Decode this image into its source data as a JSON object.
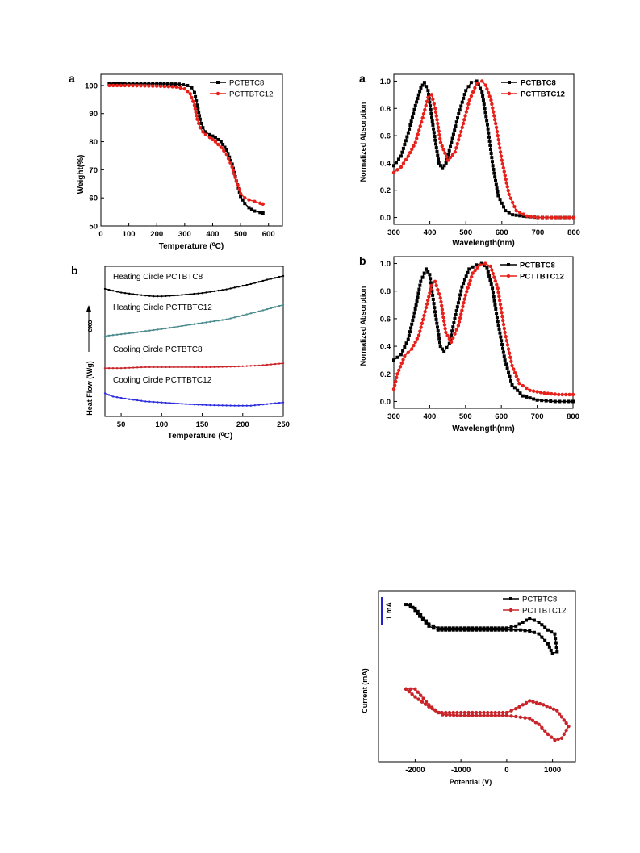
{
  "colors": {
    "black": "#000000",
    "red": "#e8201a",
    "teal": "#4a8a8c",
    "crimson": "#c8242a",
    "blue": "#2d2de0",
    "scale_bar": "#2222cc"
  },
  "chart_data": [
    {
      "id": "tga",
      "type": "line",
      "panel_label": "a",
      "xlabel": "Temperature (⁰C)",
      "ylabel": "Weight(%)",
      "xlim": [
        0,
        650
      ],
      "ylim": [
        50,
        104
      ],
      "xticks": [
        0,
        100,
        200,
        300,
        400,
        500,
        600
      ],
      "yticks": [
        50,
        60,
        70,
        80,
        90,
        100
      ],
      "legend": "top-right",
      "series": [
        {
          "name": "PCTBTC8",
          "color": "#000000",
          "marker": "square",
          "x": [
            30,
            100,
            200,
            280,
            310,
            325,
            335,
            345,
            355,
            365,
            375,
            390,
            410,
            430,
            450,
            470,
            485,
            500,
            515,
            530,
            550,
            570,
            580
          ],
          "y": [
            100.6,
            100.6,
            100.6,
            100.5,
            100.0,
            99.2,
            97.5,
            93.0,
            88.0,
            85.0,
            83.5,
            82.5,
            81.5,
            80.0,
            77.0,
            72.0,
            66.0,
            60.5,
            58.0,
            56.5,
            55.3,
            54.8,
            54.6
          ]
        },
        {
          "name": "PCTTBTC12",
          "color": "#e8201a",
          "marker": "circle",
          "x": [
            30,
            100,
            200,
            270,
            300,
            320,
            335,
            345,
            355,
            365,
            375,
            390,
            410,
            430,
            450,
            470,
            485,
            500,
            515,
            530,
            550,
            570,
            580
          ],
          "y": [
            100.0,
            100.0,
            99.8,
            99.5,
            98.8,
            97.0,
            93.0,
            88.0,
            85.0,
            83.5,
            82.5,
            81.5,
            80.0,
            78.0,
            75.5,
            71.0,
            66.0,
            61.5,
            60.0,
            59.3,
            58.7,
            58.1,
            57.8
          ]
        }
      ]
    },
    {
      "id": "dsc",
      "type": "line",
      "panel_label": "b",
      "xlabel": "Temperature (⁰C)",
      "ylabel": "Heat Flow (W/g)",
      "arrow_label": "exo",
      "xlim": [
        30,
        250
      ],
      "xticks": [
        50,
        100,
        150,
        200,
        250
      ],
      "series": [
        {
          "name": "Heating Circle PCTBTC8",
          "color": "#000000",
          "offset": 1.7,
          "x": [
            30,
            50,
            70,
            90,
            100,
            120,
            150,
            180,
            210,
            230,
            250
          ],
          "y": [
            0.18,
            0.11,
            0.07,
            0.04,
            0.04,
            0.06,
            0.1,
            0.17,
            0.27,
            0.35,
            0.42
          ]
        },
        {
          "name": "Heating Circle PCTTBTC12",
          "color": "#4a8a8c",
          "offset": 1.0,
          "x": [
            30,
            60,
            100,
            140,
            180,
            220,
            250
          ],
          "y": [
            0.0,
            0.05,
            0.13,
            0.22,
            0.31,
            0.46,
            0.58
          ]
        },
        {
          "name": "Cooling Circle PCTBTC8",
          "color": "#c8242a",
          "offset": 0.4,
          "x": [
            30,
            50,
            80,
            100,
            130,
            160,
            190,
            220,
            250
          ],
          "y": [
            0.0,
            0.0,
            0.02,
            0.02,
            0.02,
            0.02,
            0.03,
            0.05,
            0.09
          ]
        },
        {
          "name": "Cooling Circle PCTTBTC12",
          "color": "#2d2de0",
          "offset": -0.18,
          "x": [
            30,
            40,
            60,
            80,
            100,
            130,
            160,
            190,
            210,
            230,
            250
          ],
          "y": [
            0.11,
            0.05,
            0.0,
            -0.04,
            -0.06,
            -0.09,
            -0.11,
            -0.12,
            -0.12,
            -0.09,
            -0.06
          ]
        }
      ]
    },
    {
      "id": "abs_a",
      "type": "line",
      "panel_label": "a",
      "xlabel": "Wavelength(nm)",
      "ylabel": "Normalized Absorption",
      "xlim": [
        300,
        800
      ],
      "ylim": [
        -0.05,
        1.05
      ],
      "xticks": [
        300,
        400,
        500,
        600,
        700,
        800
      ],
      "yticks": [
        0.0,
        0.2,
        0.4,
        0.6,
        0.8,
        1.0
      ],
      "legend": "top-right",
      "series": [
        {
          "name": "PCTBTC8",
          "color": "#000000",
          "marker": "square",
          "x": [
            300,
            320,
            340,
            360,
            375,
            385,
            395,
            410,
            425,
            435,
            445,
            460,
            480,
            500,
            515,
            530,
            545,
            560,
            575,
            590,
            610,
            630,
            660,
            700,
            750,
            800
          ],
          "y": [
            0.38,
            0.45,
            0.62,
            0.82,
            0.95,
            0.99,
            0.93,
            0.65,
            0.4,
            0.36,
            0.4,
            0.55,
            0.76,
            0.93,
            0.99,
            1.0,
            0.92,
            0.68,
            0.38,
            0.16,
            0.05,
            0.02,
            0.01,
            0.0,
            0.0,
            0.0
          ]
        },
        {
          "name": "PCTTBTC12",
          "color": "#e8201a",
          "marker": "circle",
          "x": [
            300,
            320,
            340,
            360,
            380,
            395,
            405,
            415,
            430,
            450,
            470,
            490,
            510,
            530,
            545,
            555,
            570,
            585,
            600,
            620,
            640,
            670,
            700,
            750,
            800
          ],
          "y": [
            0.33,
            0.37,
            0.45,
            0.55,
            0.73,
            0.88,
            0.9,
            0.8,
            0.55,
            0.42,
            0.48,
            0.66,
            0.86,
            0.98,
            1.0,
            0.97,
            0.86,
            0.66,
            0.42,
            0.17,
            0.05,
            0.01,
            0.0,
            0.0,
            0.0
          ]
        }
      ]
    },
    {
      "id": "abs_b",
      "type": "line",
      "panel_label": "b",
      "xlabel": "Wavelength(nm)",
      "ylabel": "Normalized Absorption",
      "xlim": [
        300,
        800
      ],
      "ylim": [
        -0.05,
        1.05
      ],
      "xticks": [
        300,
        400,
        500,
        600,
        700,
        800
      ],
      "yticks": [
        0.0,
        0.2,
        0.4,
        0.6,
        0.8,
        1.0
      ],
      "legend": "top-right",
      "series": [
        {
          "name": "PCTBTC8",
          "color": "#000000",
          "marker": "square",
          "x": [
            300,
            320,
            340,
            360,
            375,
            390,
            400,
            415,
            430,
            440,
            455,
            470,
            490,
            510,
            530,
            545,
            560,
            575,
            590,
            610,
            630,
            660,
            700,
            750,
            800
          ],
          "y": [
            0.3,
            0.34,
            0.45,
            0.67,
            0.87,
            0.96,
            0.92,
            0.65,
            0.4,
            0.36,
            0.42,
            0.6,
            0.83,
            0.96,
            0.99,
            1.0,
            0.97,
            0.82,
            0.58,
            0.3,
            0.12,
            0.04,
            0.01,
            0.0,
            0.0
          ]
        },
        {
          "name": "PCTTBTC12",
          "color": "#e8201a",
          "marker": "circle",
          "x": [
            300,
            310,
            330,
            350,
            370,
            390,
            405,
            415,
            430,
            445,
            460,
            480,
            500,
            520,
            540,
            555,
            570,
            590,
            610,
            630,
            650,
            680,
            720,
            760,
            800
          ],
          "y": [
            0.09,
            0.2,
            0.33,
            0.38,
            0.48,
            0.68,
            0.84,
            0.87,
            0.75,
            0.5,
            0.43,
            0.55,
            0.77,
            0.93,
            0.99,
            1.0,
            0.98,
            0.82,
            0.5,
            0.26,
            0.13,
            0.08,
            0.06,
            0.05,
            0.05
          ]
        }
      ]
    },
    {
      "id": "cv",
      "type": "line",
      "xlabel": "Potential (V)",
      "ylabel": "Current (mA)",
      "scale_bar_label": "1 mA",
      "xlim": [
        -2800,
        1500
      ],
      "xticks": [
        -2000,
        -1000,
        0,
        1000
      ],
      "legend": "top-right",
      "series": [
        {
          "name": "PCTBTC8",
          "color": "#000000",
          "marker": "square",
          "x": [
            -2200,
            -2000,
            -1700,
            -1500,
            -1000,
            -500,
            0,
            200,
            500,
            700,
            900,
            1050,
            1100,
            1000,
            900,
            700,
            500,
            300,
            0,
            -500,
            -1000,
            -1500,
            -1700,
            -1900,
            -2100
          ],
          "y": [
            5.8,
            5.6,
            4.8,
            4.6,
            4.6,
            4.6,
            4.6,
            4.7,
            5.1,
            4.9,
            4.5,
            4.3,
            3.4,
            3.3,
            3.8,
            4.3,
            4.45,
            4.5,
            4.5,
            4.5,
            4.5,
            4.5,
            4.7,
            5.2,
            5.8
          ]
        },
        {
          "name": "PCTTBTC12",
          "color": "#c8242a",
          "marker": "circle",
          "x": [
            -2200,
            -2000,
            -1700,
            -1500,
            -1000,
            -500,
            0,
            200,
            500,
            800,
            1100,
            1350,
            1200,
            1050,
            900,
            700,
            500,
            200,
            0,
            -500,
            -1000,
            -1400,
            -1700,
            -2000,
            -2200
          ],
          "y": [
            1.5,
            1.5,
            0.7,
            0.3,
            0.3,
            0.3,
            0.3,
            0.5,
            0.9,
            0.7,
            0.4,
            -0.4,
            -1.0,
            -1.1,
            -0.8,
            -0.3,
            0.0,
            0.1,
            0.15,
            0.15,
            0.15,
            0.2,
            0.6,
            1.1,
            1.5
          ]
        }
      ]
    }
  ]
}
